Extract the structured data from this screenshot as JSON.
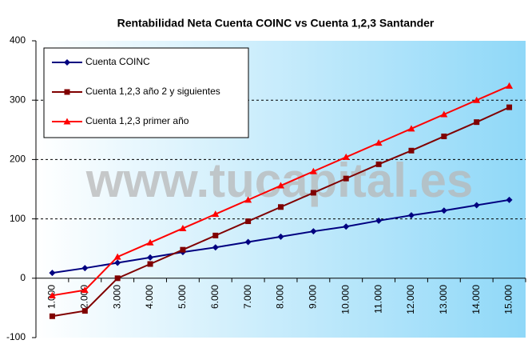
{
  "chart_data": {
    "type": "line",
    "title": "Rentabilidad Neta Cuenta COINC vs Cuenta 1,2,3 Santander",
    "watermark": "www.tucapital.es",
    "categories": [
      "1.000",
      "2.000",
      "3.000",
      "4.000",
      "5.000",
      "6.000",
      "7.000",
      "8.000",
      "9.000",
      "10.000",
      "11.000",
      "12.000",
      "13.000",
      "14.000",
      "15.000"
    ],
    "series": [
      {
        "name": "Cuenta COINC",
        "color": "#000080",
        "marker": "diamond",
        "values": [
          9,
          17,
          26,
          35,
          44,
          52,
          61,
          70,
          79,
          87,
          97,
          106,
          114,
          123,
          132
        ]
      },
      {
        "name": "Cuenta 1,2,3 año 2 y siguientes",
        "color": "#800000",
        "marker": "square",
        "values": [
          -64,
          -55,
          0,
          24,
          48,
          72,
          96,
          120,
          144,
          168,
          192,
          215,
          239,
          263,
          288
        ]
      },
      {
        "name": "Cuenta 1,2,3 primer año",
        "color": "#ff0000",
        "marker": "triangle",
        "values": [
          -29,
          -20,
          36,
          60,
          84,
          108,
          132,
          156,
          180,
          204,
          228,
          252,
          276,
          300,
          324
        ]
      }
    ],
    "ylim": [
      -100,
      400
    ],
    "yticks": [
      -100,
      0,
      100,
      200,
      300,
      400
    ],
    "grid": true,
    "legend": "top-left"
  }
}
